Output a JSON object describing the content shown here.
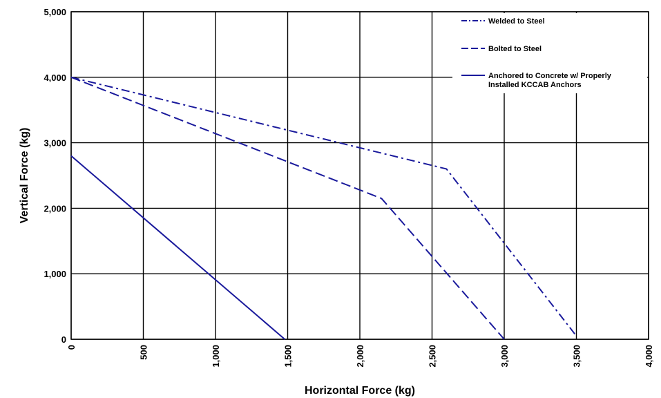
{
  "chart_data": {
    "type": "line",
    "title": "",
    "xlabel": "Horizontal Force (kg)",
    "ylabel": "Vertical Force (kg)",
    "xlim": [
      0,
      4000
    ],
    "ylim": [
      0,
      5000
    ],
    "x_ticks": [
      0,
      500,
      1000,
      1500,
      2000,
      2500,
      3000,
      3500,
      4000
    ],
    "x_tick_labels": [
      "0",
      "500",
      "1,000",
      "1,500",
      "2,000",
      "2,500",
      "3,000",
      "3,500",
      "4,000"
    ],
    "y_ticks": [
      0,
      1000,
      2000,
      3000,
      4000,
      5000
    ],
    "y_tick_labels": [
      "0",
      "1,000",
      "2,000",
      "3,000",
      "4,000",
      "5,000"
    ],
    "grid": true,
    "legend_position": "top-right",
    "line_color": "#1a1a9c",
    "series": [
      {
        "name": "Welded to Steel",
        "style": "dash-dot",
        "points": [
          [
            0,
            4000
          ],
          [
            2600,
            2600
          ],
          [
            3500,
            50
          ]
        ]
      },
      {
        "name": "Bolted to Steel",
        "style": "dashed",
        "points": [
          [
            0,
            4000
          ],
          [
            2150,
            2150
          ],
          [
            3000,
            0
          ]
        ]
      },
      {
        "name": "Anchored to Concrete w/ Properly Installed KCCAB Anchors",
        "legend_lines": [
          "Anchored to Concrete w/ Properly",
          "Installed KCCAB Anchors"
        ],
        "style": "solid",
        "points": [
          [
            0,
            2800
          ],
          [
            1480,
            0
          ]
        ]
      }
    ]
  }
}
